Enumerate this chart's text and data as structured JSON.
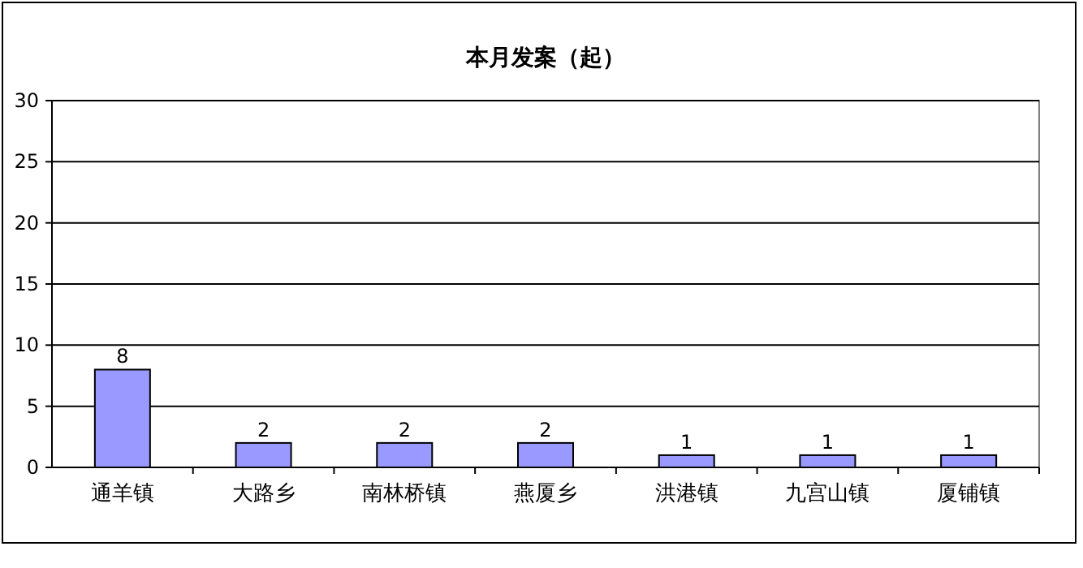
{
  "chart_data": {
    "type": "bar",
    "title": "本月发案（起）",
    "categories": [
      "通羊镇",
      "大路乡",
      "南林桥镇",
      "燕厦乡",
      "洪港镇",
      "九宫山镇",
      "厦铺镇"
    ],
    "values": [
      8,
      2,
      2,
      2,
      1,
      1,
      1
    ],
    "color": "#9999ff",
    "ylim": [
      0,
      30
    ],
    "yticks": [
      0,
      5,
      10,
      15,
      20,
      25,
      30
    ],
    "grid": "y",
    "data_labels": true
  }
}
